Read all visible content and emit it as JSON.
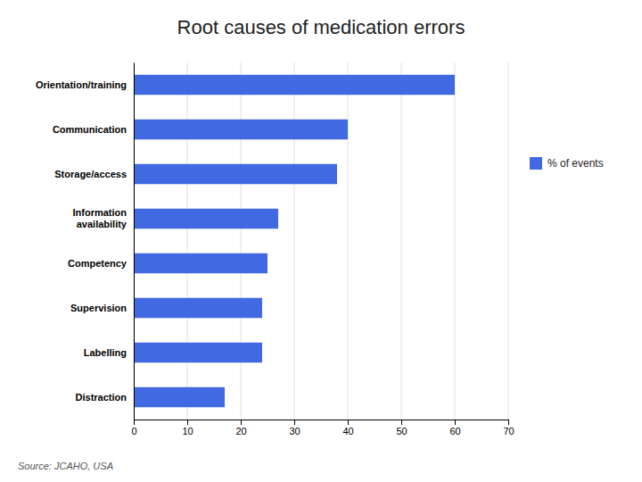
{
  "chart_data": {
    "type": "bar",
    "orientation": "horizontal",
    "title": "Root causes of medication errors",
    "categories": [
      "Distraction",
      "Labelling",
      "Supervision",
      "Competency",
      "Information\navailability",
      "Storage/access",
      "Communication",
      "Orientation/training"
    ],
    "series": [
      {
        "name": "% of events",
        "color": "#4169e1",
        "values": [
          17,
          24,
          24,
          25,
          27,
          38,
          40,
          60
        ]
      }
    ],
    "xlim": [
      0,
      70
    ],
    "xticks": [
      0,
      10,
      20,
      30,
      40,
      50,
      60,
      70
    ],
    "grid": true,
    "legend": "right",
    "annotations": [
      "Source: JCAHO, USA"
    ]
  }
}
